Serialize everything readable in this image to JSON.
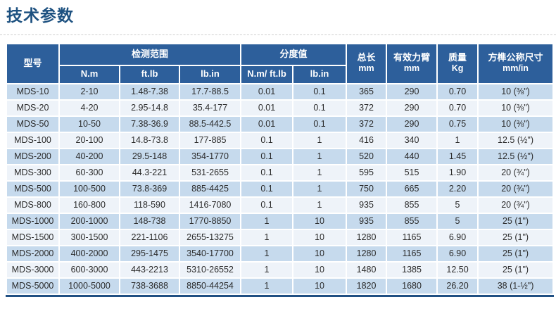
{
  "page": {
    "title": "技术参数"
  },
  "table": {
    "header": {
      "model": "型号",
      "range_group": "检测范围",
      "range_units": [
        "N.m",
        "ft.lb",
        "lb.in"
      ],
      "division_group": "分度值",
      "division_units": [
        "N.m/ ft.lb",
        "lb.in"
      ],
      "total_length": "总长",
      "total_length_unit": "mm",
      "arm": "有效力臂",
      "arm_unit": "mm",
      "mass": "质量",
      "mass_unit": "Kg",
      "square": "方榫公称尺寸",
      "square_unit": "mm/in"
    },
    "rows": [
      [
        "MDS-10",
        "2-10",
        "1.48-7.38",
        "17.7-88.5",
        "0.01",
        "0.1",
        "365",
        "290",
        "0.70",
        "10 (⅜\")"
      ],
      [
        "MDS-20",
        "4-20",
        "2.95-14.8",
        "35.4-177",
        "0.01",
        "0.1",
        "372",
        "290",
        "0.70",
        "10 (⅜\")"
      ],
      [
        "MDS-50",
        "10-50",
        "7.38-36.9",
        "88.5-442.5",
        "0.01",
        "0.1",
        "372",
        "290",
        "0.75",
        "10 (⅜\")"
      ],
      [
        "MDS-100",
        "20-100",
        "14.8-73.8",
        "177-885",
        "0.1",
        "1",
        "416",
        "340",
        "1",
        "12.5 (½\")"
      ],
      [
        "MDS-200",
        "40-200",
        "29.5-148",
        "354-1770",
        "0.1",
        "1",
        "520",
        "440",
        "1.45",
        "12.5 (½\")"
      ],
      [
        "MDS-300",
        "60-300",
        "44.3-221",
        "531-2655",
        "0.1",
        "1",
        "595",
        "515",
        "1.90",
        "20 (¾\")"
      ],
      [
        "MDS-500",
        "100-500",
        "73.8-369",
        "885-4425",
        "0.1",
        "1",
        "750",
        "665",
        "2.20",
        "20 (¾\")"
      ],
      [
        "MDS-800",
        "160-800",
        "118-590",
        "1416-7080",
        "0.1",
        "1",
        "935",
        "855",
        "5",
        "20 (¾\")"
      ],
      [
        "MDS-1000",
        "200-1000",
        "148-738",
        "1770-8850",
        "1",
        "10",
        "935",
        "855",
        "5",
        "25 (1\")"
      ],
      [
        "MDS-1500",
        "300-1500",
        "221-1106",
        "2655-13275",
        "1",
        "10",
        "1280",
        "1165",
        "6.90",
        "25 (1\")"
      ],
      [
        "MDS-2000",
        "400-2000",
        "295-1475",
        "3540-17700",
        "1",
        "10",
        "1280",
        "1165",
        "6.90",
        "25 (1\")"
      ],
      [
        "MDS-3000",
        "600-3000",
        "443-2213",
        "5310-26552",
        "1",
        "10",
        "1480",
        "1385",
        "12.50",
        "25 (1\")"
      ],
      [
        "MDS-5000",
        "1000-5000",
        "738-3688",
        "8850-44254",
        "1",
        "10",
        "1820",
        "1680",
        "26.20",
        "38 (1-½\")"
      ]
    ],
    "column_keys": [
      "model",
      "range-nm",
      "range-ftlb",
      "range-lbin",
      "division-nm-ftlb",
      "division-lbin",
      "total-length",
      "effective-arm",
      "mass",
      "square-size"
    ],
    "colors": {
      "header_bg": "#2d5f9b",
      "row_odd_bg": "#c6daed",
      "row_even_bg": "#eef3f9",
      "title_color": "#1d5180",
      "bottom_bar": "#215083",
      "cell_text": "#2b2b2b"
    }
  }
}
